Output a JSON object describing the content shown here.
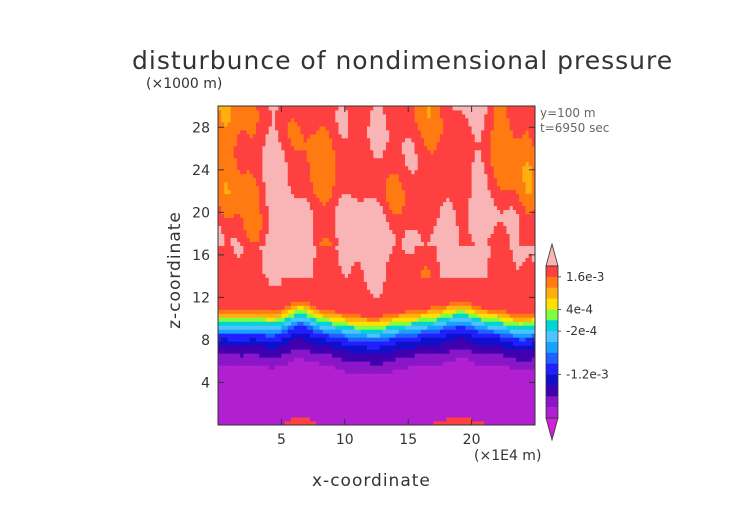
{
  "chart_data": {
    "type": "heatmap",
    "title": "disturbunce of nondimensional pressure",
    "xlabel": "x-coordinate",
    "ylabel": "z-coordinate",
    "x_unit": "(×1E4 m)",
    "y_unit": "(×1000 m)",
    "annotations": [
      "y=100  m",
      "t=6950 sec"
    ],
    "xlim": [
      0,
      25
    ],
    "ylim": [
      0,
      30
    ],
    "x_ticks": [
      5,
      10,
      15,
      20
    ],
    "y_ticks": [
      4,
      8,
      12,
      16,
      20,
      24,
      28
    ],
    "colorbar": {
      "tick_labels": [
        "1.6e-3",
        "4e-4",
        "-2e-4",
        "-1.2e-3"
      ],
      "tick_values": [
        0.0016,
        0.0004,
        -0.0002,
        -0.0012
      ],
      "colors_top_to_bottom": [
        "#f9b5b5",
        "#ff4040",
        "#ff7a10",
        "#ffb010",
        "#ffe000",
        "#80ff40",
        "#00d4d4",
        "#4dc4ff",
        "#1aa0ff",
        "#2060ff",
        "#2020ff",
        "#1010cc",
        "#4000b0",
        "#8a16c8",
        "#b020d0",
        "#d020d8"
      ]
    },
    "z_profile": [
      {
        "z": 0,
        "level": 14
      },
      {
        "z": 5,
        "level": 14
      },
      {
        "z": 7,
        "level": 12
      },
      {
        "z": 8.3,
        "level": 10
      },
      {
        "z": 9.5,
        "level": 6
      },
      {
        "z": 11,
        "level": 1
      },
      {
        "z": 18,
        "level": 0
      },
      {
        "z": 22,
        "level": 1
      },
      {
        "z": 30,
        "level": 1
      }
    ]
  }
}
